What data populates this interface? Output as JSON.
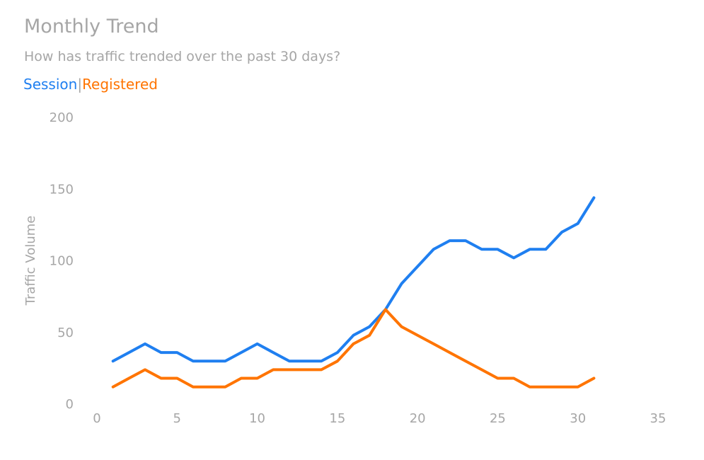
{
  "chart_data": {
    "type": "line",
    "title": "Monthly Trend",
    "subtitle": "How has traffic trended over the past 30 days?",
    "xlabel": "",
    "ylabel": "Traffic Volume",
    "xlim": [
      0,
      35
    ],
    "ylim": [
      0,
      200
    ],
    "xticks": [
      0,
      5,
      10,
      15,
      20,
      25,
      30,
      35
    ],
    "yticks": [
      0,
      50,
      100,
      150,
      200
    ],
    "grid": false,
    "legend_position": "top-left",
    "legend_separator": "|",
    "x": [
      1,
      2,
      3,
      4,
      5,
      6,
      7,
      8,
      9,
      10,
      11,
      12,
      13,
      14,
      15,
      16,
      17,
      18,
      19,
      20,
      21,
      22,
      23,
      24,
      25,
      26,
      27,
      28,
      29,
      30,
      31
    ],
    "series": [
      {
        "name": "Session",
        "color": "#1f7ff0",
        "values": [
          30,
          36,
          42,
          36,
          36,
          30,
          30,
          30,
          36,
          42,
          36,
          30,
          30,
          30,
          36,
          48,
          54,
          66,
          84,
          96,
          108,
          114,
          114,
          108,
          108,
          102,
          108,
          108,
          120,
          126,
          144
        ]
      },
      {
        "name": "Registered",
        "color": "#ff7400",
        "values": [
          12,
          18,
          24,
          18,
          18,
          12,
          12,
          12,
          18,
          18,
          24,
          24,
          24,
          24,
          30,
          42,
          48,
          66,
          54,
          48,
          42,
          36,
          30,
          24,
          18,
          18,
          12,
          12,
          12,
          12,
          18
        ]
      }
    ]
  }
}
